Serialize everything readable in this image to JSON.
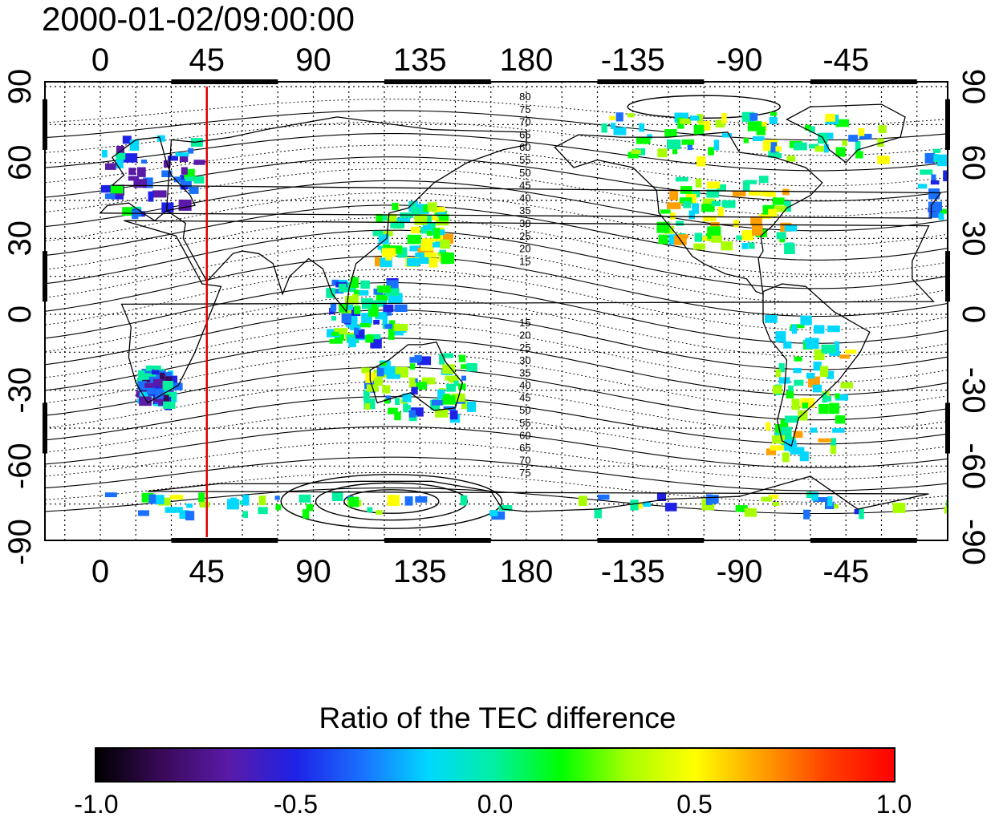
{
  "map": {
    "title": "2000-01-02/09:00:00",
    "longitude_ticks": [
      "0",
      "45",
      "90",
      "135",
      "180",
      "-135",
      "-90",
      "-45"
    ],
    "longitude_values": [
      0,
      45,
      90,
      135,
      180,
      225,
      270,
      315
    ],
    "latitude_ticks": [
      "90",
      "60",
      "30",
      "0",
      "-30",
      "-60",
      "-90"
    ],
    "latitude_values": [
      90,
      60,
      30,
      0,
      -30,
      -60,
      -90
    ],
    "marker_longitude": 45,
    "marker_color": "#e00000",
    "contour_labels_north": [
      "80",
      "75",
      "70",
      "65",
      "60",
      "55",
      "50",
      "45",
      "40",
      "35",
      "30",
      "25",
      "20",
      "15"
    ],
    "contour_labels_south": [
      "15",
      "20",
      "25",
      "30",
      "35",
      "40",
      "45",
      "50",
      "55",
      "60",
      "65",
      "70",
      "75"
    ]
  },
  "colorbar": {
    "title": "Ratio of the TEC difference",
    "ticks": [
      "-1.0",
      "-0.5",
      "0.0",
      "0.5",
      "1.0"
    ],
    "tick_values": [
      -1.0,
      -0.5,
      0.0,
      0.5,
      1.0
    ],
    "colors": [
      "#000000",
      "#3a0a5a",
      "#5a1aa8",
      "#1e22e6",
      "#1a70ff",
      "#00d8ff",
      "#00f0a0",
      "#00ff00",
      "#a8ff00",
      "#ffff00",
      "#ffa000",
      "#ff4000",
      "#ff0000"
    ]
  }
}
